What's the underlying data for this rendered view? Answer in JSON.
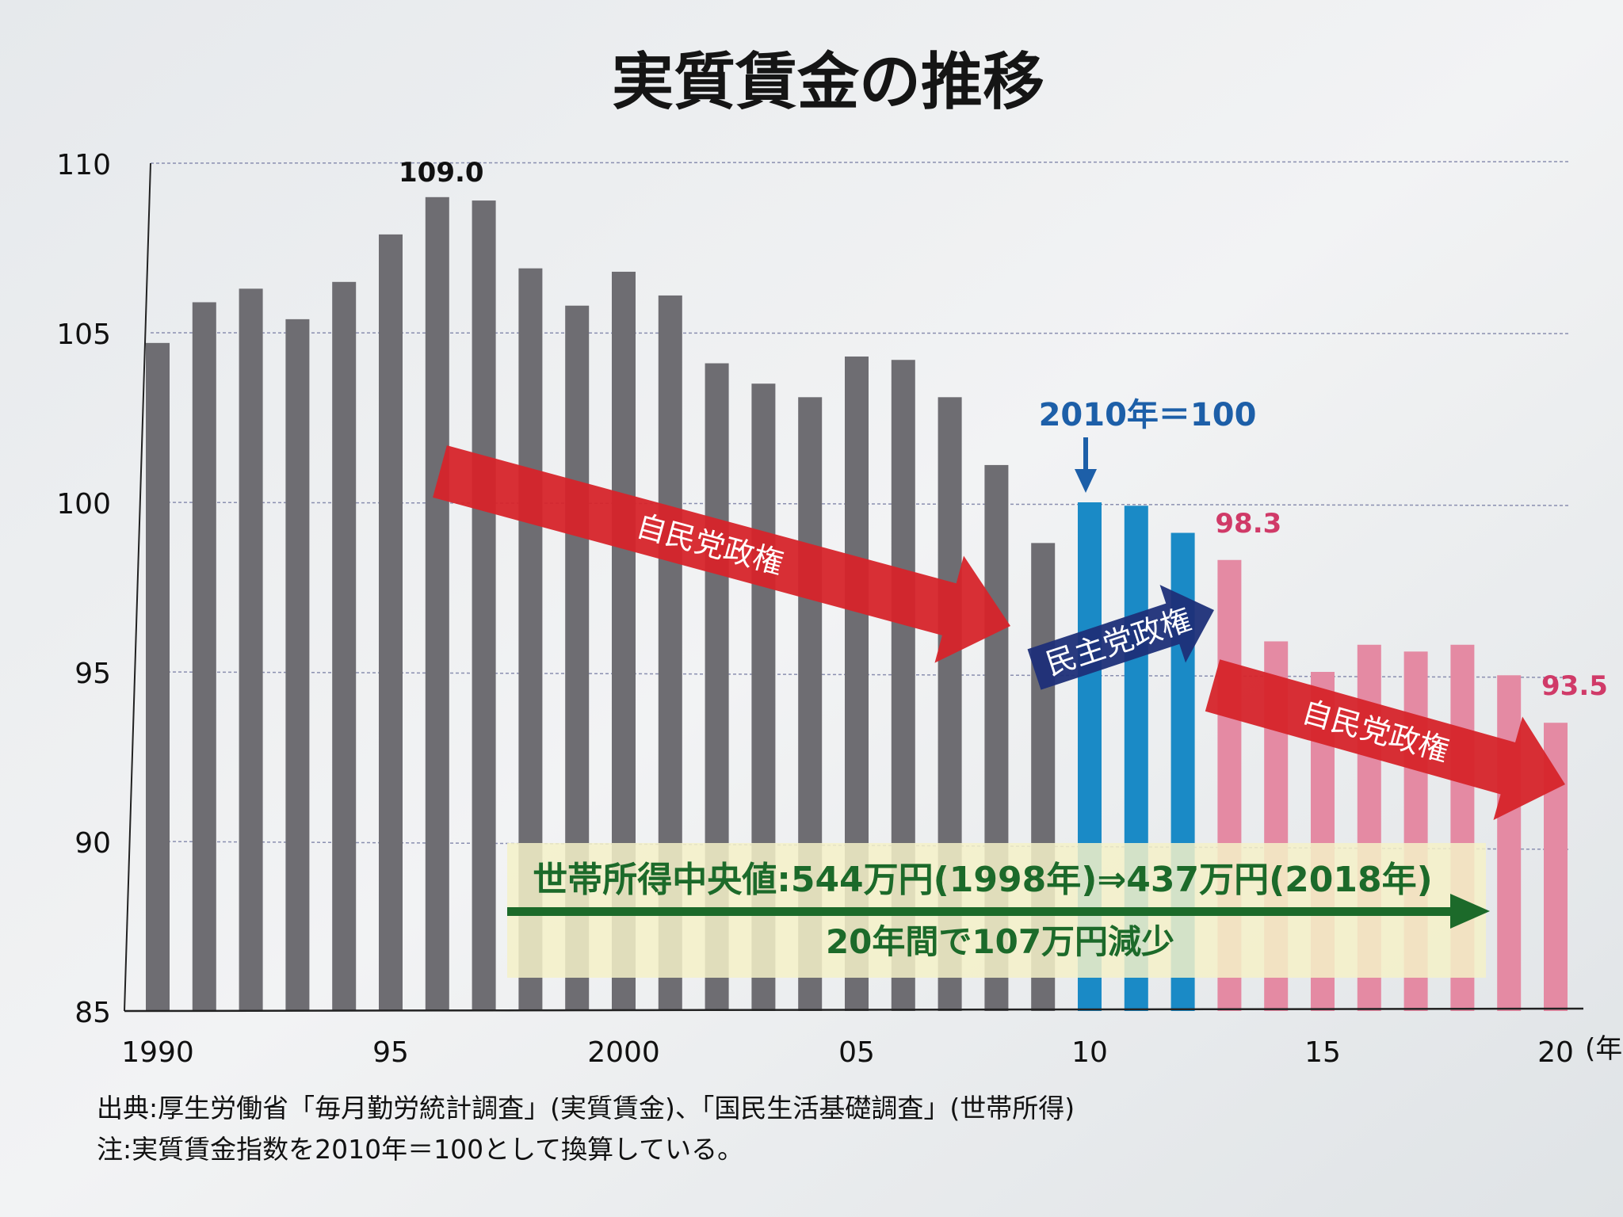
{
  "chart_data": {
    "type": "bar",
    "title": "実質賃金の推移",
    "xlabel": "(年)",
    "ylabel": "",
    "ylim": [
      85,
      110
    ],
    "yticks": [
      "85",
      "90",
      "95",
      "100",
      "105",
      "110"
    ],
    "xtick_labels": [
      "1990",
      "95",
      "2000",
      "05",
      "10",
      "15",
      "20"
    ],
    "grid": true,
    "categories": [
      1990,
      1991,
      1992,
      1993,
      1994,
      1995,
      1996,
      1997,
      1998,
      1999,
      2000,
      2001,
      2002,
      2003,
      2004,
      2005,
      2006,
      2007,
      2008,
      2009,
      2010,
      2011,
      2012,
      2013,
      2014,
      2015,
      2016,
      2017,
      2018,
      2019,
      2020
    ],
    "values": [
      104.7,
      105.9,
      106.3,
      105.4,
      106.5,
      107.9,
      109.0,
      108.9,
      106.9,
      105.8,
      106.8,
      106.1,
      104.1,
      103.5,
      103.1,
      104.3,
      104.2,
      103.1,
      101.1,
      98.8,
      100.0,
      99.9,
      99.1,
      98.3,
      95.9,
      95.0,
      95.8,
      95.6,
      95.8,
      94.9,
      93.5
    ],
    "colors": {
      "ldp_before": "#6e6d72",
      "dpj": "#1a8ac6",
      "ldp_after": "#e48aa3"
    },
    "data_labels": [
      {
        "year": 1996,
        "text": "109.0",
        "color": "#111111"
      },
      {
        "year": 2013,
        "text": "98.3",
        "color": "#d03a68"
      },
      {
        "year": 2020,
        "text": "93.5",
        "color": "#d03a68"
      }
    ],
    "annotations": {
      "base_note": "2010年＝100",
      "arrow_ldp_1": "自民党政権",
      "arrow_dpj": "民主党政権",
      "arrow_ldp_2": "自民党政権",
      "income_line1": "世帯所得中央値:544万円(1998年)⇒437万円(2018年)",
      "income_line2": "20年間で107万円減少"
    }
  },
  "footer": {
    "source": "出典:厚生労働省「毎月勤労統計調査」(実質賃金)、「国民生活基礎調査」(世帯所得)",
    "note": "注:実質賃金指数を2010年＝100として換算している。"
  }
}
